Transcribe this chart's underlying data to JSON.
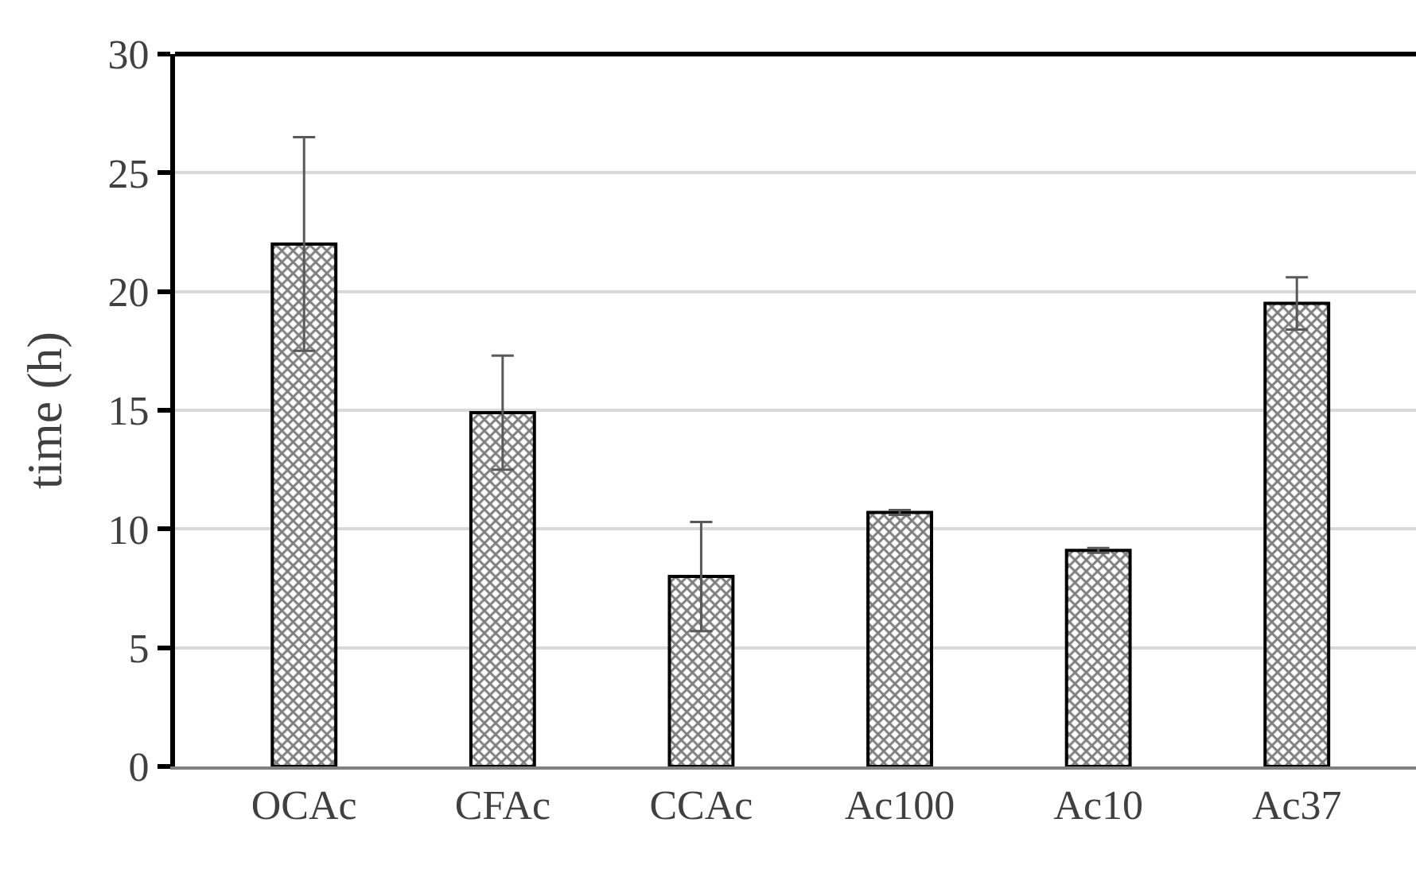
{
  "chart_data": {
    "type": "bar",
    "ylabel": "time (h)",
    "categories": [
      "OCAc",
      "CFAc",
      "CCAc",
      "Ac100",
      "Ac10",
      "Ac37"
    ],
    "values": [
      22.0,
      14.9,
      8.0,
      10.7,
      9.1,
      19.5
    ],
    "errors": [
      4.5,
      2.4,
      2.3,
      0.1,
      0.1,
      1.1
    ],
    "color": "#000000",
    "ylim": [
      0,
      30
    ],
    "yticks": [
      0,
      5,
      10,
      15,
      20,
      25,
      30
    ],
    "grid": "y"
  }
}
